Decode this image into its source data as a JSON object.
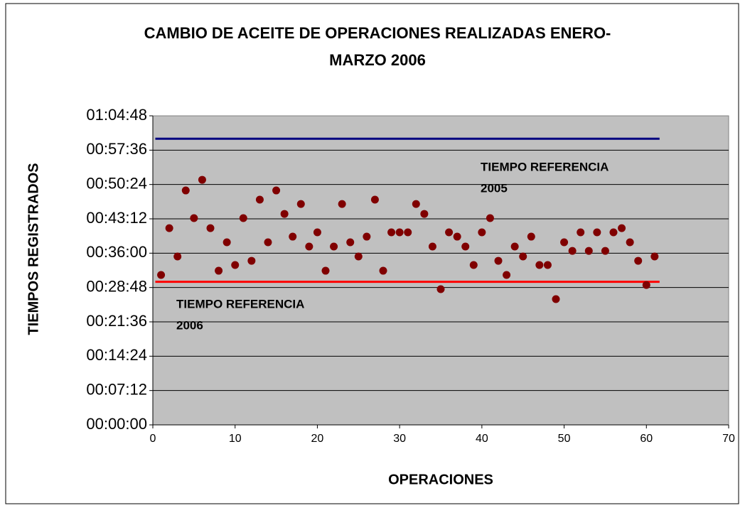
{
  "chart_data": {
    "type": "scatter",
    "title": [
      "CAMBIO DE ACEITE DE OPERACIONES  REALIZADAS ENERO-",
      "MARZO 2006"
    ],
    "xlabel": "OPERACIONES",
    "ylabel": "TIEMPOS REGISTRADOS",
    "xlim": [
      0,
      70
    ],
    "xticks": [
      0,
      10,
      20,
      30,
      40,
      50,
      60,
      70
    ],
    "ylim": [
      0,
      3888
    ],
    "yticks": [
      {
        "value": 0,
        "label": "00:00:00"
      },
      {
        "value": 432,
        "label": "00:07:12"
      },
      {
        "value": 864,
        "label": "00:14:24"
      },
      {
        "value": 1296,
        "label": "00:21:36"
      },
      {
        "value": 1728,
        "label": "00:28:48"
      },
      {
        "value": 2160,
        "label": "00:36:00"
      },
      {
        "value": 2592,
        "label": "00:43:12"
      },
      {
        "value": 3024,
        "label": "00:50:24"
      },
      {
        "value": 3456,
        "label": "00:57:36"
      },
      {
        "value": 3888,
        "label": "01:04:48"
      }
    ],
    "grid": true,
    "series": [
      {
        "color": "#800000",
        "x": [
          1,
          2,
          3,
          4,
          5,
          6,
          7,
          8,
          9,
          10,
          11,
          12,
          13,
          14,
          15,
          16,
          17,
          18,
          19,
          20,
          21,
          22,
          23,
          24,
          25,
          26,
          27,
          28,
          29,
          30,
          31,
          32,
          33,
          34,
          35,
          36,
          37,
          38,
          39,
          40,
          41,
          42,
          43,
          44,
          45,
          46,
          47,
          48,
          49,
          50,
          51,
          52,
          53,
          54,
          55,
          56,
          57,
          58,
          59,
          60,
          61
        ],
        "values": [
          1886,
          2475,
          2118,
          2949,
          2601,
          3083,
          2475,
          1939,
          2297,
          2011,
          2601,
          2064,
          2833,
          2297,
          2949,
          2654,
          2368,
          2779,
          2243,
          2422,
          1939,
          2243,
          2779,
          2297,
          2118,
          2368,
          2833,
          1939,
          2422,
          2422,
          2422,
          2779,
          2654,
          2243,
          1707,
          2422,
          2368,
          2243,
          2011,
          2422,
          2601,
          2064,
          1886,
          2243,
          2118,
          2368,
          2011,
          2011,
          1582,
          2297,
          2189,
          2422,
          2189,
          2422,
          2189,
          2422,
          2475,
          2297,
          2064,
          1760,
          2118
        ]
      }
    ],
    "reference_lines": [
      {
        "color": "#000080",
        "x": [
          0.3,
          61.6
        ],
        "values": [
          3600,
          3600
        ],
        "label": [
          "TIEMPO REFERENCIA",
          "2005"
        ]
      },
      {
        "color": "#ff0000",
        "x": [
          0.3,
          61.6
        ],
        "values": [
          1800,
          1800
        ],
        "label": [
          "TIEMPO REFERENCIA",
          "2006"
        ]
      }
    ]
  }
}
